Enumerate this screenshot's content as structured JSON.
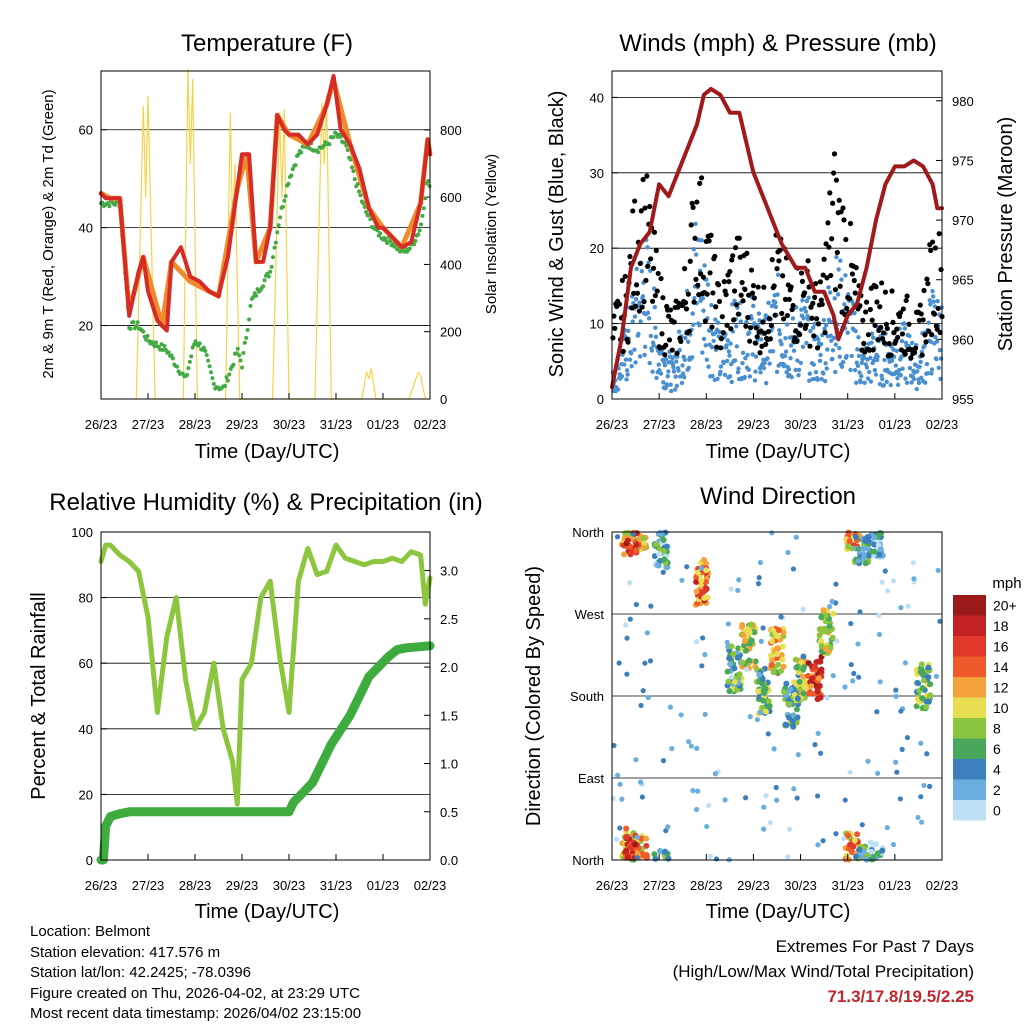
{
  "panels": {
    "temperature": {
      "title": "Temperature (F)",
      "ylabel_left": "2m & 9m T (Red, Orange) & 2m Td (Green)",
      "ylabel_right": "Solar Insolation (Yellow)",
      "xlabel": "Time (Day/UTC)"
    },
    "winds": {
      "title": "Winds (mph) & Pressure (mb)",
      "ylabel_left": "Sonic Wind & Gust (Blue, Black)",
      "ylabel_right": "Station Pressure (Maroon)",
      "xlabel": "Time (Day/UTC)"
    },
    "humidity": {
      "title": "Relative Humidity (%) & Precipitation (in)",
      "ylabel_left": "Percent & Total Rainfall",
      "xlabel": "Time (Day/UTC)"
    },
    "direction": {
      "title": "Wind Direction",
      "ylabel_left": "Direction (Colored By Speed)",
      "xlabel": "Time (Day/UTC)",
      "legend_title": "mph"
    }
  },
  "info": {
    "location": "Location: Belmont",
    "elevation": "Station elevation: 417.576 m",
    "latlon": "Station lat/lon: 42.2425; -78.0396",
    "created": "Figure created on Thu, 2026-04-02, at 23:29 UTC",
    "recent": "Most recent data timestamp: 2026/04/02 23:15:00"
  },
  "extremes": {
    "title": "Extremes For Past 7 Days",
    "subtitle": "(High/Low/Max Wind/Total Precipitation)",
    "values": "71.3/17.8/19.5/2.25"
  },
  "colors": {
    "temp2m": "#d62b26",
    "temp9m": "#f08a2a",
    "dewpoint": "#44aa44",
    "solar": "#f5d24a",
    "wind": "#4a90d0",
    "gust": "#000000",
    "pressure": "#a01a1a",
    "rh": "#8cc63f",
    "precip": "#3eab3e"
  },
  "chart_data": [
    {
      "type": "line",
      "title": "Temperature (F)",
      "xlabel": "Time (Day/UTC)",
      "x_ticks": [
        "26/23",
        "27/23",
        "28/23",
        "29/23",
        "30/23",
        "31/23",
        "01/23",
        "02/23"
      ],
      "xlim": [
        0,
        7
      ],
      "ylim_left": [
        5,
        72
      ],
      "ylim_right": [
        0,
        975
      ],
      "yticks_left": [
        "20",
        "40",
        "60"
      ],
      "yticks_right": [
        "0",
        "200",
        "400",
        "600",
        "800"
      ],
      "series": [
        {
          "name": "2m T",
          "axis": "left",
          "x": [
            0,
            0.1,
            0.2,
            0.3,
            0.4,
            0.6,
            0.8,
            0.9,
            1.0,
            1.2,
            1.3,
            1.4,
            1.5,
            1.7,
            1.9,
            2.1,
            2.3,
            2.5,
            2.7,
            2.9,
            3.0,
            3.15,
            3.3,
            3.45,
            3.6,
            3.75,
            3.9,
            4.0,
            4.2,
            4.4,
            4.6,
            4.8,
            4.95,
            5.1,
            5.3,
            5.5,
            5.7,
            5.9,
            6.0,
            6.2,
            6.4,
            6.6,
            6.8,
            6.95,
            7.0
          ],
          "y": [
            47,
            46,
            46,
            46,
            46,
            22,
            31,
            34,
            27,
            21,
            20,
            19,
            33,
            36,
            30,
            29,
            27,
            26,
            34,
            48,
            55,
            55,
            33,
            33,
            40,
            63,
            60,
            59,
            59,
            57,
            59,
            65,
            71,
            60,
            57,
            52,
            44,
            40,
            40,
            38,
            36,
            37,
            45,
            58,
            55
          ]
        },
        {
          "name": "9m T",
          "axis": "left",
          "x": [
            0,
            0.2,
            0.4,
            0.6,
            0.9,
            1.3,
            1.5,
            1.9,
            2.5,
            2.9,
            3.1,
            3.3,
            3.6,
            3.75,
            4.0,
            4.4,
            4.8,
            4.95,
            5.3,
            5.7,
            6.0,
            6.4,
            6.8,
            6.95,
            7.0
          ],
          "y": [
            47,
            46,
            46,
            23,
            34,
            20,
            33,
            29,
            26,
            48,
            55,
            33,
            40,
            63,
            59,
            57,
            65,
            70,
            57,
            44,
            40,
            36,
            45,
            58,
            55
          ]
        },
        {
          "name": "2m Td",
          "axis": "left",
          "x": [
            0,
            0.2,
            0.4,
            0.6,
            0.8,
            1.0,
            1.2,
            1.4,
            1.6,
            1.8,
            2.0,
            2.2,
            2.4,
            2.6,
            2.8,
            2.9,
            3.0,
            3.2,
            3.4,
            3.6,
            3.8,
            4.0,
            4.2,
            4.4,
            4.6,
            4.8,
            5.0,
            5.2,
            5.4,
            5.6,
            5.8,
            6.0,
            6.2,
            6.4,
            6.6,
            6.8,
            6.95,
            7.0
          ],
          "y": [
            45,
            45,
            45,
            20,
            20,
            17,
            16,
            15,
            12,
            9,
            17,
            15,
            8,
            7,
            12,
            15,
            12,
            25,
            28,
            31,
            42,
            50,
            55,
            57,
            56,
            57,
            59,
            57,
            50,
            44,
            40,
            38,
            37,
            35,
            36,
            40,
            50,
            48
          ]
        },
        {
          "name": "Solar Insolation",
          "axis": "right",
          "x": [
            0.75,
            0.9,
            0.95,
            1.0,
            1.15,
            1.75,
            1.85,
            1.9,
            1.95,
            2.05,
            2.65,
            2.75,
            2.8,
            2.85,
            2.95,
            3.65,
            3.8,
            3.85,
            3.9,
            4.0,
            4.55,
            4.7,
            4.75,
            4.8,
            4.9,
            5.55,
            5.65,
            5.7,
            5.75,
            5.85,
            6.55,
            6.7,
            6.75,
            6.8,
            6.9
          ],
          "y": [
            0,
            870,
            600,
            900,
            0,
            0,
            980,
            700,
            950,
            0,
            0,
            850,
            500,
            700,
            0,
            0,
            850,
            600,
            860,
            0,
            0,
            880,
            700,
            900,
            0,
            0,
            80,
            60,
            90,
            0,
            0,
            60,
            80,
            70,
            0
          ]
        }
      ]
    },
    {
      "type": "line",
      "title": "Winds (mph) & Pressure (mb)",
      "xlabel": "Time (Day/UTC)",
      "x_ticks": [
        "26/23",
        "27/23",
        "28/23",
        "29/23",
        "30/23",
        "31/23",
        "01/23",
        "02/23"
      ],
      "xlim": [
        0,
        7
      ],
      "ylim_left": [
        0,
        43.5
      ],
      "ylim_right": [
        955,
        982.5
      ],
      "yticks_left": [
        "0",
        "10",
        "20",
        "30",
        "40"
      ],
      "yticks_right": [
        "955",
        "960",
        "965",
        "970",
        "975",
        "980"
      ],
      "series": [
        {
          "name": "Sonic Wind",
          "axis": "left",
          "x": [
            0,
            0.3,
            0.5,
            0.7,
            1.0,
            1.3,
            1.6,
            1.8,
            2.0,
            2.3,
            2.6,
            2.9,
            3.2,
            3.5,
            3.8,
            4.1,
            4.4,
            4.7,
            5.0,
            5.3,
            5.6,
            5.9,
            6.2,
            6.5,
            6.8,
            7.0
          ],
          "y": [
            2,
            6,
            10,
            14,
            6,
            3,
            9,
            16,
            12,
            5,
            8,
            9,
            6,
            10,
            7,
            9,
            5,
            12,
            10,
            4,
            6,
            5,
            6,
            4,
            9,
            8
          ]
        },
        {
          "name": "Gust",
          "axis": "left",
          "x": [
            0,
            0.3,
            0.5,
            0.7,
            1.0,
            1.3,
            1.6,
            1.8,
            2.0,
            2.3,
            2.6,
            2.9,
            3.2,
            3.5,
            3.8,
            4.1,
            4.4,
            4.7,
            5.0,
            5.3,
            5.6,
            5.9,
            6.2,
            6.5,
            6.8,
            7.0
          ],
          "y": [
            8,
            12,
            20,
            22,
            12,
            8,
            14,
            24,
            18,
            10,
            16,
            14,
            10,
            16,
            12,
            14,
            10,
            24,
            18,
            9,
            12,
            10,
            10,
            8,
            16,
            16
          ]
        },
        {
          "name": "Station Pressure",
          "axis": "right",
          "x": [
            0,
            0.2,
            0.4,
            0.6,
            0.8,
            1.0,
            1.2,
            1.5,
            1.8,
            1.95,
            2.1,
            2.3,
            2.5,
            2.7,
            3.0,
            3.3,
            3.6,
            3.9,
            4.1,
            4.3,
            4.5,
            4.7,
            4.8,
            5.0,
            5.2,
            5.4,
            5.6,
            5.8,
            6.0,
            6.2,
            6.4,
            6.6,
            6.8,
            6.9,
            7.0
          ],
          "y": [
            956,
            960,
            966,
            968,
            969,
            973,
            972,
            975,
            978,
            980.5,
            981,
            980.5,
            979,
            979,
            974,
            971,
            968,
            966,
            966,
            964,
            964,
            962,
            960,
            962,
            963,
            966,
            970,
            973,
            974.5,
            974.5,
            975,
            974.5,
            973,
            971,
            971
          ]
        }
      ]
    },
    {
      "type": "line",
      "title": "Relative Humidity (%) & Precipitation (in)",
      "xlabel": "Time (Day/UTC)",
      "x_ticks": [
        "26/23",
        "27/23",
        "28/23",
        "29/23",
        "30/23",
        "31/23",
        "01/23",
        "02/23"
      ],
      "xlim": [
        0,
        7
      ],
      "ylim_left": [
        0,
        100
      ],
      "ylim_right": [
        0,
        3.4
      ],
      "yticks_left": [
        "0",
        "20",
        "40",
        "60",
        "80",
        "100"
      ],
      "yticks_right": [
        "0.0",
        "0.5",
        "1.0",
        "1.5",
        "2.0",
        "2.5",
        "3.0"
      ],
      "series": [
        {
          "name": "Relative Humidity",
          "axis": "left",
          "x": [
            0,
            0.1,
            0.2,
            0.4,
            0.6,
            0.8,
            1.0,
            1.2,
            1.4,
            1.6,
            1.8,
            2.0,
            2.2,
            2.4,
            2.6,
            2.8,
            2.9,
            3.0,
            3.2,
            3.4,
            3.6,
            3.8,
            4.0,
            4.2,
            4.4,
            4.6,
            4.8,
            5.0,
            5.2,
            5.4,
            5.6,
            5.8,
            6.0,
            6.2,
            6.4,
            6.6,
            6.8,
            6.9,
            7.0
          ],
          "y": [
            91,
            96,
            96,
            93,
            91,
            88,
            74,
            45,
            68,
            80,
            55,
            40,
            45,
            60,
            40,
            30,
            17,
            55,
            60,
            80,
            85,
            62,
            45,
            85,
            95,
            87,
            88,
            96,
            92,
            91,
            90,
            91,
            91,
            92,
            91,
            94,
            93,
            78,
            86
          ]
        },
        {
          "name": "Total Precipitation",
          "axis": "right",
          "x": [
            0,
            0.05,
            0.1,
            0.2,
            0.4,
            0.6,
            1.0,
            2.0,
            3.0,
            4.0,
            4.1,
            4.3,
            4.5,
            4.7,
            4.9,
            5.1,
            5.3,
            5.5,
            5.7,
            5.9,
            6.1,
            6.3,
            6.5,
            7.0
          ],
          "y": [
            0,
            0,
            0.35,
            0.45,
            0.48,
            0.5,
            0.5,
            0.5,
            0.5,
            0.5,
            0.6,
            0.7,
            0.8,
            1.0,
            1.2,
            1.35,
            1.5,
            1.7,
            1.9,
            2.0,
            2.1,
            2.18,
            2.2,
            2.22
          ]
        }
      ]
    },
    {
      "type": "scatter",
      "title": "Wind Direction",
      "xlabel": "Time (Day/UTC)",
      "x_ticks": [
        "26/23",
        "27/23",
        "28/23",
        "29/23",
        "30/23",
        "31/23",
        "01/23",
        "02/23"
      ],
      "xlim": [
        0,
        7
      ],
      "y_ticks": [
        "North",
        "West",
        "South",
        "East",
        "North"
      ],
      "legend_title": "mph",
      "legend_labels": [
        "20+",
        "18",
        "16",
        "14",
        "12",
        "10",
        "8",
        "6",
        "4",
        "2",
        "0"
      ],
      "legend_colors": [
        "#9b1a1a",
        "#c32222",
        "#e0392b",
        "#f05a2a",
        "#f5a23c",
        "#e8de52",
        "#8cc63f",
        "#4aa85c",
        "#3b7fbd",
        "#6aaee0",
        "#bde0f5"
      ],
      "clusters": [
        {
          "x": 0.35,
          "dir": 10,
          "speed": 10
        },
        {
          "x": 0.6,
          "dir": 5,
          "speed": 12
        },
        {
          "x": 1.05,
          "dir": 345,
          "speed": 4
        },
        {
          "x": 1.9,
          "dir": 305,
          "speed": 14
        },
        {
          "x": 2.6,
          "dir": 210,
          "speed": 6
        },
        {
          "x": 2.9,
          "dir": 235,
          "speed": 9
        },
        {
          "x": 3.2,
          "dir": 185,
          "speed": 6
        },
        {
          "x": 3.5,
          "dir": 230,
          "speed": 10
        },
        {
          "x": 3.8,
          "dir": 170,
          "speed": 5
        },
        {
          "x": 4.0,
          "dir": 200,
          "speed": 8
        },
        {
          "x": 4.3,
          "dir": 200,
          "speed": 16
        },
        {
          "x": 4.55,
          "dir": 250,
          "speed": 9
        },
        {
          "x": 5.1,
          "dir": 5,
          "speed": 12
        },
        {
          "x": 5.6,
          "dir": 355,
          "speed": 3
        },
        {
          "x": 6.6,
          "dir": 190,
          "speed": 7
        },
        {
          "x": 0.4,
          "dir": 360,
          "speed": 16
        },
        {
          "x": 5.3,
          "dir": 350,
          "speed": 5
        }
      ]
    }
  ]
}
